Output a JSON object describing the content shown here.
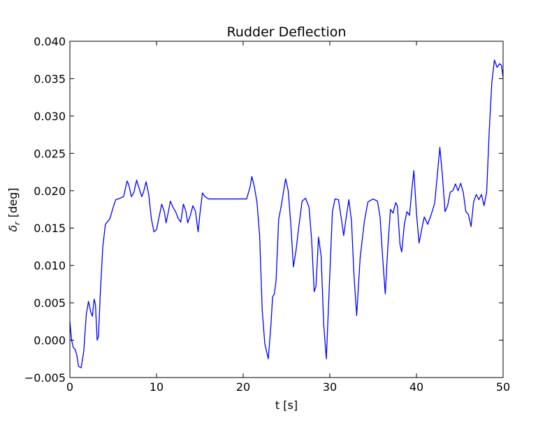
{
  "chart_data": {
    "type": "line",
    "title": "Rudder Deflection",
    "xlabel": "t [s]",
    "ylabel_symbol": "δ",
    "ylabel_subscript": "r",
    "ylabel_unit": "[deg]",
    "xlim": [
      0,
      50
    ],
    "ylim": [
      -0.005,
      0.04
    ],
    "xticks": [
      0,
      10,
      20,
      30,
      40,
      50
    ],
    "xtick_labels": [
      "0",
      "10",
      "20",
      "30",
      "40",
      "50"
    ],
    "yticks": [
      -0.005,
      0.0,
      0.005,
      0.01,
      0.015,
      0.02,
      0.025,
      0.03,
      0.035,
      0.04
    ],
    "ytick_labels": [
      "−0.005",
      "0.000",
      "0.005",
      "0.010",
      "0.015",
      "0.020",
      "0.025",
      "0.030",
      "0.035",
      "0.040"
    ],
    "grid": false,
    "legend": false,
    "series": [
      {
        "color": "#0000ff",
        "points": [
          [
            0.0,
            0.0025
          ],
          [
            0.2,
            0.0
          ],
          [
            0.4,
            -0.001
          ],
          [
            0.6,
            -0.0012
          ],
          [
            0.8,
            -0.002
          ],
          [
            1.0,
            -0.0035
          ],
          [
            1.3,
            -0.0037
          ],
          [
            1.6,
            -0.0015
          ],
          [
            1.9,
            0.0035
          ],
          [
            2.15,
            0.0052
          ],
          [
            2.4,
            0.0038
          ],
          [
            2.6,
            0.0032
          ],
          [
            2.8,
            0.0055
          ],
          [
            2.95,
            0.0048
          ],
          [
            3.15,
            0.0
          ],
          [
            3.3,
            0.0005
          ],
          [
            3.5,
            0.006
          ],
          [
            3.8,
            0.0125
          ],
          [
            4.1,
            0.0155
          ],
          [
            4.3,
            0.0158
          ],
          [
            4.6,
            0.0162
          ],
          [
            5.0,
            0.0178
          ],
          [
            5.3,
            0.0188
          ],
          [
            5.8,
            0.019
          ],
          [
            6.2,
            0.0192
          ],
          [
            6.6,
            0.0213
          ],
          [
            6.8,
            0.0208
          ],
          [
            7.1,
            0.0192
          ],
          [
            7.4,
            0.0198
          ],
          [
            7.7,
            0.0214
          ],
          [
            8.0,
            0.0203
          ],
          [
            8.3,
            0.0192
          ],
          [
            8.5,
            0.0198
          ],
          [
            8.8,
            0.0212
          ],
          [
            9.1,
            0.0195
          ],
          [
            9.4,
            0.0163
          ],
          [
            9.7,
            0.0145
          ],
          [
            10.0,
            0.0148
          ],
          [
            10.3,
            0.0165
          ],
          [
            10.6,
            0.0182
          ],
          [
            10.9,
            0.0172
          ],
          [
            11.1,
            0.0157
          ],
          [
            11.3,
            0.0168
          ],
          [
            11.6,
            0.0186
          ],
          [
            11.9,
            0.0178
          ],
          [
            12.2,
            0.0172
          ],
          [
            12.5,
            0.0163
          ],
          [
            12.8,
            0.0158
          ],
          [
            13.1,
            0.0182
          ],
          [
            13.4,
            0.0172
          ],
          [
            13.6,
            0.0157
          ],
          [
            13.9,
            0.0167
          ],
          [
            14.2,
            0.018
          ],
          [
            14.5,
            0.0172
          ],
          [
            14.8,
            0.0145
          ],
          [
            15.0,
            0.0168
          ],
          [
            15.3,
            0.0197
          ],
          [
            15.6,
            0.0192
          ],
          [
            16.0,
            0.0189
          ],
          [
            18.0,
            0.0189
          ],
          [
            20.4,
            0.0189
          ],
          [
            20.8,
            0.0205
          ],
          [
            21.0,
            0.0219
          ],
          [
            21.3,
            0.0205
          ],
          [
            21.6,
            0.0184
          ],
          [
            21.9,
            0.014
          ],
          [
            22.2,
            0.004
          ],
          [
            22.5,
            -0.0005
          ],
          [
            22.9,
            -0.0025
          ],
          [
            23.2,
            0.002
          ],
          [
            23.4,
            0.0058
          ],
          [
            23.6,
            0.0062
          ],
          [
            23.8,
            0.008
          ],
          [
            24.1,
            0.0162
          ],
          [
            24.4,
            0.018
          ],
          [
            24.7,
            0.0202
          ],
          [
            24.9,
            0.0216
          ],
          [
            25.2,
            0.02
          ],
          [
            25.5,
            0.0155
          ],
          [
            25.8,
            0.0098
          ],
          [
            26.1,
            0.012
          ],
          [
            26.4,
            0.015
          ],
          [
            26.8,
            0.0186
          ],
          [
            27.2,
            0.019
          ],
          [
            27.6,
            0.0178
          ],
          [
            27.9,
            0.0135
          ],
          [
            28.2,
            0.0065
          ],
          [
            28.4,
            0.0072
          ],
          [
            28.7,
            0.0138
          ],
          [
            29.0,
            0.0112
          ],
          [
            29.3,
            0.002
          ],
          [
            29.6,
            -0.0025
          ],
          [
            29.9,
            0.006
          ],
          [
            30.3,
            0.0172
          ],
          [
            30.6,
            0.0189
          ],
          [
            31.0,
            0.0188
          ],
          [
            31.3,
            0.0165
          ],
          [
            31.6,
            0.014
          ],
          [
            31.9,
            0.0165
          ],
          [
            32.2,
            0.0188
          ],
          [
            32.5,
            0.016
          ],
          [
            32.8,
            0.0085
          ],
          [
            33.1,
            0.0033
          ],
          [
            33.5,
            0.011
          ],
          [
            34.0,
            0.016
          ],
          [
            34.4,
            0.0185
          ],
          [
            35.0,
            0.0189
          ],
          [
            35.5,
            0.0186
          ],
          [
            35.8,
            0.0165
          ],
          [
            36.1,
            0.011
          ],
          [
            36.4,
            0.0062
          ],
          [
            36.7,
            0.0125
          ],
          [
            37.0,
            0.0175
          ],
          [
            37.3,
            0.017
          ],
          [
            37.6,
            0.0184
          ],
          [
            37.8,
            0.018
          ],
          [
            38.1,
            0.0128
          ],
          [
            38.3,
            0.0118
          ],
          [
            38.6,
            0.0155
          ],
          [
            38.9,
            0.0172
          ],
          [
            39.2,
            0.0167
          ],
          [
            39.5,
            0.0205
          ],
          [
            39.7,
            0.0227
          ],
          [
            40.0,
            0.017
          ],
          [
            40.3,
            0.013
          ],
          [
            40.6,
            0.0148
          ],
          [
            40.9,
            0.0165
          ],
          [
            41.3,
            0.0155
          ],
          [
            41.7,
            0.0168
          ],
          [
            42.1,
            0.0183
          ],
          [
            42.4,
            0.022
          ],
          [
            42.7,
            0.0258
          ],
          [
            43.0,
            0.022
          ],
          [
            43.3,
            0.0172
          ],
          [
            43.6,
            0.018
          ],
          [
            43.9,
            0.0198
          ],
          [
            44.2,
            0.02
          ],
          [
            44.5,
            0.0209
          ],
          [
            44.8,
            0.02
          ],
          [
            45.1,
            0.021
          ],
          [
            45.4,
            0.0198
          ],
          [
            45.7,
            0.0172
          ],
          [
            46.0,
            0.0168
          ],
          [
            46.3,
            0.0152
          ],
          [
            46.6,
            0.0185
          ],
          [
            46.9,
            0.0195
          ],
          [
            47.2,
            0.0188
          ],
          [
            47.5,
            0.0195
          ],
          [
            47.8,
            0.018
          ],
          [
            48.1,
            0.0198
          ],
          [
            48.4,
            0.028
          ],
          [
            48.7,
            0.0345
          ],
          [
            49.0,
            0.0375
          ],
          [
            49.3,
            0.0365
          ],
          [
            49.6,
            0.037
          ],
          [
            49.8,
            0.0368
          ],
          [
            50.0,
            0.0352
          ]
        ]
      }
    ]
  }
}
